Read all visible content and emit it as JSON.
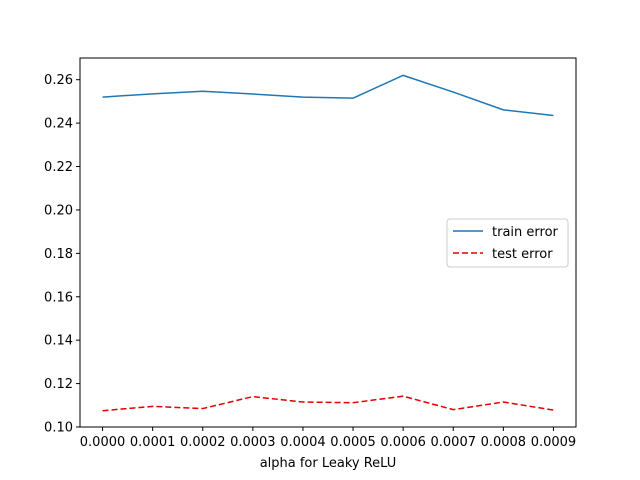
{
  "chart_data": {
    "type": "line",
    "title": "",
    "xlabel": "alpha for Leaky ReLU",
    "ylabel": "",
    "xlim": [
      -4.5e-05,
      0.000945
    ],
    "ylim": [
      0.1,
      0.27
    ],
    "x_ticks": [
      "0.0000",
      "0.0001",
      "0.0002",
      "0.0003",
      "0.0004",
      "0.0005",
      "0.0006",
      "0.0007",
      "0.0008",
      "0.0009"
    ],
    "y_ticks": [
      "0.10",
      "0.12",
      "0.14",
      "0.16",
      "0.18",
      "0.20",
      "0.22",
      "0.24",
      "0.26"
    ],
    "grid": false,
    "legend_position": "center-right",
    "x": [
      0.0,
      0.0001,
      0.0002,
      0.0003,
      0.0004,
      0.0005,
      0.0006,
      0.0007,
      0.0008,
      0.0009
    ],
    "series": [
      {
        "name": "train error",
        "color": "#1f77b4",
        "style": "solid",
        "values": [
          0.252,
          0.2535,
          0.2547,
          0.2534,
          0.252,
          0.2515,
          0.262,
          0.2543,
          0.2461,
          0.2435
        ]
      },
      {
        "name": "test error",
        "color": "#e00000",
        "style": "dashed",
        "values": [
          0.1075,
          0.1095,
          0.1085,
          0.114,
          0.1115,
          0.1112,
          0.1142,
          0.108,
          0.1115,
          0.1078
        ]
      }
    ]
  }
}
